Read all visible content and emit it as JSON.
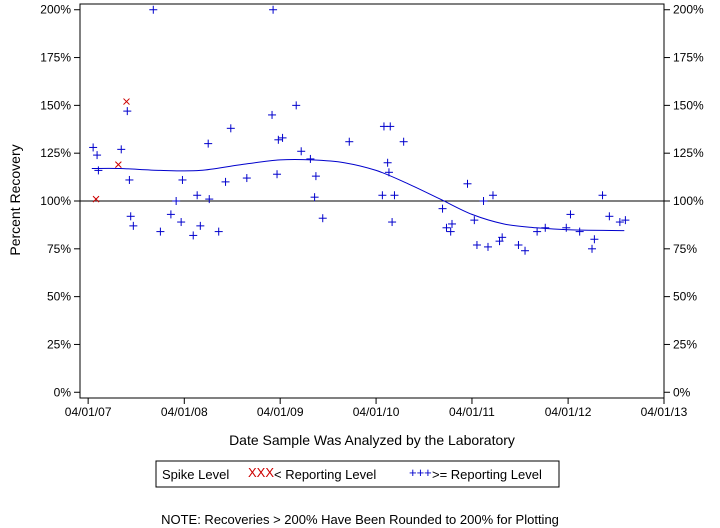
{
  "chart_data": {
    "type": "scatter",
    "xlabel": "Date Sample Was Analyzed by the Laboratory",
    "ylabel": "Percent Recovery",
    "x_ticks": [
      "04/01/07",
      "04/01/08",
      "04/01/09",
      "04/01/10",
      "04/01/11",
      "04/01/12",
      "04/01/13"
    ],
    "y_ticks": [
      "0%",
      "25%",
      "50%",
      "75%",
      "100%",
      "125%",
      "150%",
      "175%",
      "200%"
    ],
    "xlim": [
      "2007-03-01",
      "2013-04-01"
    ],
    "ylim": [
      -3,
      203
    ],
    "reference_line": 100,
    "grid": false,
    "legend_placement": "bottom",
    "legend_title": "Spike Level",
    "series": [
      {
        "name": "< Reporting Level",
        "marker_glyph": "XXX",
        "marker": "x",
        "color": "#cc0000",
        "points": [
          {
            "x": "2007-05-01",
            "y": 101
          },
          {
            "x": "2007-07-25",
            "y": 119
          },
          {
            "x": "2007-08-25",
            "y": 152
          }
        ]
      },
      {
        "name": ">= Reporting Level",
        "marker_glyph": "+++",
        "marker": "+",
        "color": "#0000cc",
        "points": [
          {
            "x": "2007-04-20",
            "y": 128
          },
          {
            "x": "2007-05-05",
            "y": 124
          },
          {
            "x": "2007-05-10",
            "y": 116
          },
          {
            "x": "2007-08-05",
            "y": 127
          },
          {
            "x": "2007-08-28",
            "y": 147
          },
          {
            "x": "2007-09-05",
            "y": 111
          },
          {
            "x": "2007-09-10",
            "y": 92
          },
          {
            "x": "2007-09-20",
            "y": 87
          },
          {
            "x": "2007-12-05",
            "y": 200
          },
          {
            "x": "2008-01-01",
            "y": 84
          },
          {
            "x": "2008-02-10",
            "y": 93
          },
          {
            "x": "2008-03-01",
            "y": 100
          },
          {
            "x": "2008-03-20",
            "y": 89
          },
          {
            "x": "2008-03-25",
            "y": 111
          },
          {
            "x": "2008-05-05",
            "y": 82
          },
          {
            "x": "2008-05-20",
            "y": 103
          },
          {
            "x": "2008-06-01",
            "y": 87
          },
          {
            "x": "2008-07-01",
            "y": 130
          },
          {
            "x": "2008-07-05",
            "y": 101
          },
          {
            "x": "2008-08-10",
            "y": 84
          },
          {
            "x": "2008-09-05",
            "y": 110
          },
          {
            "x": "2008-09-25",
            "y": 138
          },
          {
            "x": "2008-11-25",
            "y": 112
          },
          {
            "x": "2009-03-05",
            "y": 200
          },
          {
            "x": "2009-03-01",
            "y": 145
          },
          {
            "x": "2009-03-20",
            "y": 114
          },
          {
            "x": "2009-03-25",
            "y": 132
          },
          {
            "x": "2009-04-10",
            "y": 133
          },
          {
            "x": "2009-06-01",
            "y": 150
          },
          {
            "x": "2009-06-20",
            "y": 126
          },
          {
            "x": "2009-07-25",
            "y": 122
          },
          {
            "x": "2009-08-15",
            "y": 113
          },
          {
            "x": "2009-08-10",
            "y": 102
          },
          {
            "x": "2009-09-10",
            "y": 91
          },
          {
            "x": "2009-12-20",
            "y": 131
          },
          {
            "x": "2010-05-01",
            "y": 139
          },
          {
            "x": "2010-04-25",
            "y": 103
          },
          {
            "x": "2010-05-15",
            "y": 120
          },
          {
            "x": "2010-05-25",
            "y": 139
          },
          {
            "x": "2010-05-20",
            "y": 115
          },
          {
            "x": "2010-06-01",
            "y": 89
          },
          {
            "x": "2010-06-10",
            "y": 103
          },
          {
            "x": "2010-07-15",
            "y": 131
          },
          {
            "x": "2010-12-10",
            "y": 96
          },
          {
            "x": "2010-12-25",
            "y": 86
          },
          {
            "x": "2011-01-10",
            "y": 84
          },
          {
            "x": "2011-01-15",
            "y": 88
          },
          {
            "x": "2011-03-15",
            "y": 109
          },
          {
            "x": "2011-04-10",
            "y": 90
          },
          {
            "x": "2011-04-20",
            "y": 77
          },
          {
            "x": "2011-05-15",
            "y": 100
          },
          {
            "x": "2011-06-01",
            "y": 76
          },
          {
            "x": "2011-06-20",
            "y": 103
          },
          {
            "x": "2011-07-15",
            "y": 79
          },
          {
            "x": "2011-07-25",
            "y": 81
          },
          {
            "x": "2011-09-25",
            "y": 77
          },
          {
            "x": "2011-10-20",
            "y": 74
          },
          {
            "x": "2011-12-05",
            "y": 84
          },
          {
            "x": "2012-01-05",
            "y": 86
          },
          {
            "x": "2012-03-25",
            "y": 86
          },
          {
            "x": "2012-04-10",
            "y": 93
          },
          {
            "x": "2012-05-15",
            "y": 84
          },
          {
            "x": "2012-07-01",
            "y": 75
          },
          {
            "x": "2012-07-10",
            "y": 80
          },
          {
            "x": "2012-08-10",
            "y": 103
          },
          {
            "x": "2012-09-05",
            "y": 92
          },
          {
            "x": "2012-10-15",
            "y": 89
          },
          {
            "x": "2012-11-05",
            "y": 90
          }
        ]
      }
    ],
    "trend_line": {
      "color": "#0000cc",
      "points": [
        {
          "x": "2007-04-15",
          "y": 117
        },
        {
          "x": "2007-08-01",
          "y": 117
        },
        {
          "x": "2008-01-01",
          "y": 116
        },
        {
          "x": "2008-06-01",
          "y": 116
        },
        {
          "x": "2008-11-01",
          "y": 119
        },
        {
          "x": "2009-04-01",
          "y": 121.5
        },
        {
          "x": "2009-08-01",
          "y": 121.5
        },
        {
          "x": "2009-12-01",
          "y": 120
        },
        {
          "x": "2010-04-01",
          "y": 116
        },
        {
          "x": "2010-08-01",
          "y": 109
        },
        {
          "x": "2010-12-01",
          "y": 101
        },
        {
          "x": "2011-04-01",
          "y": 93
        },
        {
          "x": "2011-08-01",
          "y": 88
        },
        {
          "x": "2011-12-01",
          "y": 86
        },
        {
          "x": "2012-04-01",
          "y": 85
        },
        {
          "x": "2012-11-01",
          "y": 84.5
        }
      ]
    },
    "note": "NOTE: Recoveries > 200% Have Been Rounded to 200% for Plotting"
  }
}
